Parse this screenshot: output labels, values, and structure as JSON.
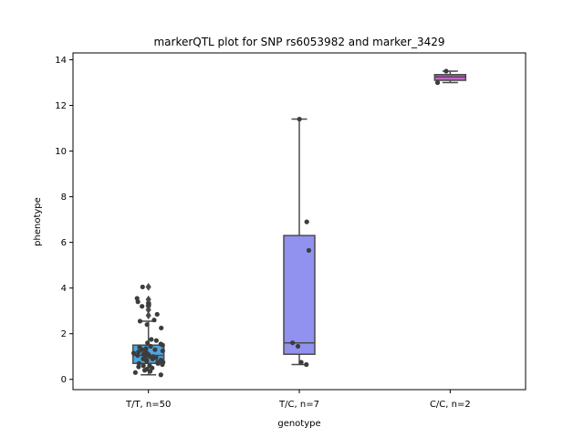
{
  "chart_data": {
    "type": "box",
    "title": "markerQTL plot for SNP rs6053982 and marker_3429",
    "xlabel": "genotype",
    "ylabel": "phenotype",
    "ylim": [
      -0.45,
      14.3
    ],
    "yticks": [
      0,
      2,
      4,
      6,
      8,
      10,
      12,
      14
    ],
    "categories": [
      "T/T, n=50",
      "T/C, n=7",
      "C/C, n=2"
    ],
    "grid": false,
    "legend": "none",
    "boxes": [
      {
        "category": "T/T, n=50",
        "color": "#4ca6e0",
        "q1": 0.7,
        "median": 1.05,
        "q3": 1.5,
        "whisker_low": 0.2,
        "whisker_high": 2.55,
        "outliers": [
          2.8,
          3.05,
          3.2,
          3.25,
          3.35,
          3.5,
          4.05
        ],
        "points": [
          0.2,
          0.3,
          0.35,
          0.4,
          0.45,
          0.5,
          0.55,
          0.6,
          0.6,
          0.65,
          0.7,
          0.7,
          0.75,
          0.75,
          0.8,
          0.85,
          0.85,
          0.9,
          0.9,
          0.95,
          1.0,
          1.0,
          1.05,
          1.05,
          1.1,
          1.1,
          1.15,
          1.2,
          1.2,
          1.25,
          1.3,
          1.3,
          1.35,
          1.4,
          1.45,
          1.5,
          1.55,
          1.6,
          1.7,
          1.75,
          2.25,
          2.4,
          2.55,
          2.6,
          2.85,
          3.2,
          3.3,
          3.4,
          3.55,
          4.05
        ]
      },
      {
        "category": "T/C, n=7",
        "color": "#9191f0",
        "q1": 1.1,
        "median": 1.6,
        "q3": 6.3,
        "whisker_low": 0.65,
        "whisker_high": 11.4,
        "outliers": [],
        "points": [
          0.65,
          0.75,
          1.45,
          1.6,
          5.65,
          6.9,
          11.4
        ]
      },
      {
        "category": "C/C, n=2",
        "color": "#c466c8",
        "q1": 13.1,
        "median": 13.25,
        "q3": 13.35,
        "whisker_low": 13.0,
        "whisker_high": 13.5,
        "outliers": [],
        "points": [
          13.0,
          13.5
        ]
      }
    ]
  }
}
